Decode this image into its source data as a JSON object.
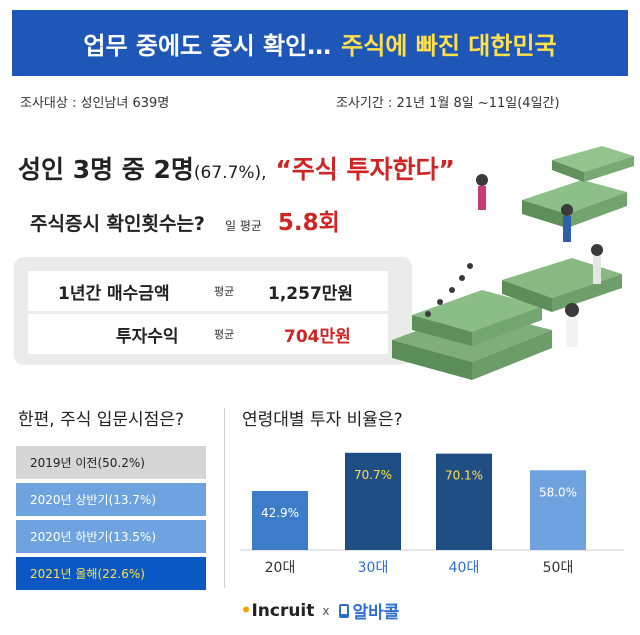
{
  "banner": {
    "title_part1": "업무 중에도 증시 확인…",
    "title_part2": "주식에 빠진 대한민국"
  },
  "survey": {
    "target": "조사대상 : 성인남녀 639명",
    "period": "조사기간 : 21년 1월 8일 ~11일(4일간)"
  },
  "headline": {
    "main": "성인 3명 중 2명",
    "pct": "(67.7%),",
    "quote": "“주식 투자한다”"
  },
  "check": {
    "question": "주식증시 확인횟수는?",
    "label": "일 평균",
    "value": "5.8회"
  },
  "stats": [
    {
      "label": "1년간 매수금액",
      "avg_label": "평균",
      "value": "1,257만원",
      "color": "#222222"
    },
    {
      "label": "투자수익",
      "avg_label": "평균",
      "value": "704만원",
      "color": "#d12424"
    }
  ],
  "entry_section": {
    "title": "한편, 주식 입문시점은?",
    "items": [
      {
        "label": "2019년 이전(50.2%)",
        "value": 50.2,
        "bg": "#d6d6d6",
        "fg": "#222222"
      },
      {
        "label": "2020년 상반기(13.7%)",
        "value": 13.7,
        "bg": "#6fa3e0",
        "fg": "#ffffff"
      },
      {
        "label": "2020년 하반기(13.5%)",
        "value": 13.5,
        "bg": "#6fa3e0",
        "fg": "#ffffff"
      },
      {
        "label": "2021년 올해(22.6%)",
        "value": 22.6,
        "bg": "#0b57c4",
        "fg": "#ffe14a"
      }
    ]
  },
  "age_section": {
    "title": "연령대별 투자 비율은?"
  },
  "chart_data": {
    "type": "bar",
    "title": "연령대별 투자 비율은?",
    "categories": [
      "20대",
      "30대",
      "40대",
      "50대"
    ],
    "values": [
      42.9,
      70.7,
      70.1,
      58.0
    ],
    "value_labels": [
      "42.9%",
      "70.7%",
      "70.1%",
      "58.0%"
    ],
    "ylim": [
      0,
      80
    ],
    "bar_colors": [
      "#3d7cc9",
      "#1f4e85",
      "#1f4e85",
      "#6fa3e0"
    ],
    "label_colors": [
      "#ffffff",
      "#ffe14a",
      "#ffe14a",
      "#ffffff"
    ],
    "category_colors": [
      "#333333",
      "#2e6fcf",
      "#2e6fcf",
      "#333333"
    ],
    "grid": false,
    "legend": "none"
  },
  "footer": {
    "brand1": "Incruit",
    "separator": "x",
    "brand2": "알바콜",
    "brand2_icon": "phone-icon"
  },
  "illustration": {
    "icon": "money-stack-illustration"
  }
}
